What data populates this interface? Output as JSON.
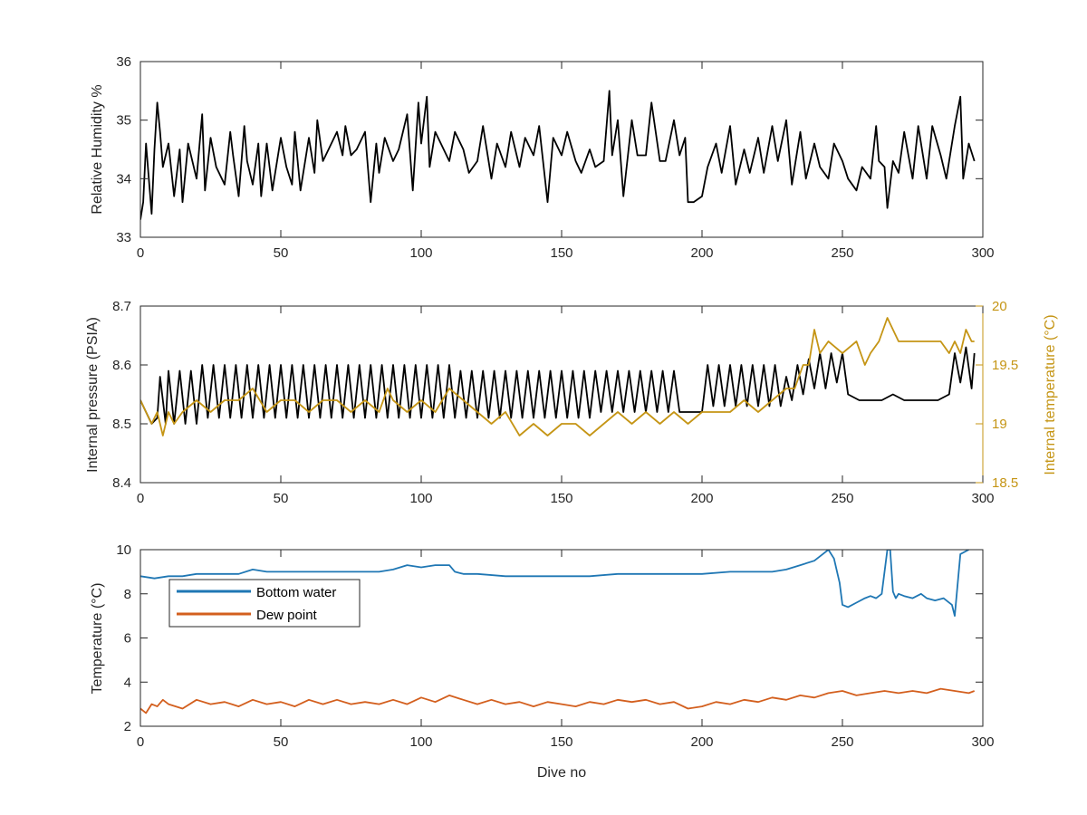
{
  "colors": {
    "axis": "#262626",
    "humidity": "#000000",
    "pressure": "#000000",
    "internal_temp": "#c59515",
    "bottom_water": "#1f77b4",
    "dew_point": "#d35f1e"
  },
  "chart_data": [
    {
      "type": "line",
      "xlabel": "",
      "ylabel": "Relative Humidity %",
      "xlim": [
        0,
        300
      ],
      "ylim": [
        33,
        36
      ],
      "x_ticks": [
        "0",
        "50",
        "100",
        "150",
        "200",
        "250",
        "300"
      ],
      "y_ticks": [
        "33",
        "34",
        "35",
        "36"
      ],
      "grid": false,
      "series": [
        {
          "color": "#000000",
          "x": [
            0,
            1,
            2,
            3,
            4,
            5,
            6,
            7,
            8,
            10,
            12,
            14,
            15,
            17,
            20,
            22,
            23,
            25,
            27,
            30,
            32,
            33,
            35,
            37,
            38,
            40,
            42,
            43,
            45,
            47,
            50,
            52,
            54,
            55,
            57,
            60,
            62,
            63,
            65,
            67,
            70,
            72,
            73,
            75,
            77,
            80,
            82,
            84,
            85,
            87,
            90,
            92,
            95,
            97,
            99,
            100,
            102,
            103,
            105,
            107,
            110,
            112,
            115,
            117,
            120,
            122,
            125,
            127,
            130,
            132,
            135,
            137,
            140,
            142,
            145,
            147,
            150,
            152,
            155,
            157,
            160,
            162,
            165,
            167,
            168,
            170,
            172,
            175,
            177,
            180,
            182,
            185,
            187,
            190,
            192,
            194,
            195,
            197,
            200,
            202,
            205,
            207,
            210,
            212,
            215,
            217,
            220,
            222,
            225,
            227,
            230,
            232,
            235,
            237,
            240,
            242,
            245,
            247,
            250,
            252,
            255,
            257,
            260,
            262,
            263,
            265,
            266,
            268,
            270,
            272,
            275,
            277,
            280,
            282,
            285,
            287,
            290,
            292,
            293,
            295,
            297
          ],
          "y": [
            33.3,
            33.6,
            34.6,
            34.0,
            33.4,
            34.5,
            35.3,
            34.8,
            34.2,
            34.6,
            33.7,
            34.5,
            33.6,
            34.6,
            34.0,
            35.1,
            33.8,
            34.7,
            34.2,
            33.9,
            34.8,
            34.4,
            33.7,
            34.9,
            34.3,
            33.9,
            34.6,
            33.7,
            34.6,
            33.8,
            34.7,
            34.2,
            33.9,
            34.8,
            33.8,
            34.7,
            34.1,
            35.0,
            34.3,
            34.5,
            34.8,
            34.4,
            34.9,
            34.4,
            34.5,
            34.8,
            33.6,
            34.6,
            34.1,
            34.7,
            34.3,
            34.5,
            35.1,
            33.8,
            35.3,
            34.6,
            35.4,
            34.2,
            34.8,
            34.6,
            34.3,
            34.8,
            34.5,
            34.1,
            34.3,
            34.9,
            34.0,
            34.6,
            34.2,
            34.8,
            34.2,
            34.7,
            34.4,
            34.9,
            33.6,
            34.7,
            34.4,
            34.8,
            34.3,
            34.1,
            34.5,
            34.2,
            34.3,
            35.5,
            34.4,
            35.0,
            33.7,
            35.0,
            34.4,
            34.4,
            35.3,
            34.3,
            34.3,
            35.0,
            34.4,
            34.7,
            33.6,
            33.6,
            33.7,
            34.2,
            34.6,
            34.1,
            34.9,
            33.9,
            34.5,
            34.1,
            34.7,
            34.1,
            34.9,
            34.3,
            35.0,
            33.9,
            34.8,
            34.0,
            34.6,
            34.2,
            34.0,
            34.6,
            34.3,
            34.0,
            33.8,
            34.2,
            34.0,
            34.9,
            34.3,
            34.2,
            33.5,
            34.3,
            34.1,
            34.8,
            34.0,
            34.9,
            34.0,
            34.9,
            34.4,
            34.0,
            34.9,
            35.4,
            34.0,
            34.6,
            34.3
          ]
        }
      ]
    },
    {
      "type": "line",
      "xlabel": "",
      "ylabel": "Internal pressure (PSIA)",
      "ylabel_right": "Internal temperature (°C)",
      "xlim": [
        0,
        300
      ],
      "ylim": [
        8.4,
        8.7
      ],
      "ylim_right": [
        18.5,
        20
      ],
      "x_ticks": [
        "0",
        "50",
        "100",
        "150",
        "200",
        "250",
        "300"
      ],
      "y_ticks": [
        "8.4",
        "8.5",
        "8.6",
        "8.7"
      ],
      "y_ticks_right": [
        "18.5",
        "19",
        "19.5",
        "20"
      ],
      "grid": false,
      "series": [
        {
          "color": "#000000",
          "axis": "left",
          "x": [
            0,
            2,
            4,
            6,
            7,
            9,
            10,
            12,
            14,
            16,
            18,
            20,
            22,
            24,
            26,
            28,
            30,
            32,
            34,
            36,
            38,
            40,
            42,
            44,
            46,
            48,
            50,
            52,
            54,
            56,
            58,
            60,
            62,
            64,
            66,
            68,
            70,
            72,
            74,
            76,
            78,
            80,
            82,
            84,
            86,
            88,
            90,
            92,
            94,
            96,
            98,
            100,
            102,
            104,
            106,
            108,
            110,
            112,
            114,
            116,
            118,
            120,
            122,
            124,
            126,
            128,
            130,
            132,
            134,
            136,
            138,
            140,
            142,
            144,
            146,
            148,
            150,
            152,
            154,
            156,
            158,
            160,
            162,
            164,
            166,
            168,
            170,
            172,
            174,
            176,
            178,
            180,
            182,
            184,
            186,
            188,
            190,
            192,
            194,
            196,
            198,
            200,
            202,
            204,
            206,
            208,
            210,
            212,
            214,
            216,
            218,
            220,
            222,
            224,
            226,
            228,
            230,
            232,
            234,
            236,
            238,
            240,
            242,
            244,
            246,
            248,
            250,
            252,
            256,
            260,
            264,
            268,
            272,
            276,
            280,
            284,
            288,
            290,
            292,
            294,
            296,
            297
          ],
          "y": [
            8.54,
            8.52,
            8.5,
            8.51,
            8.58,
            8.5,
            8.59,
            8.5,
            8.59,
            8.5,
            8.59,
            8.5,
            8.6,
            8.51,
            8.6,
            8.51,
            8.6,
            8.51,
            8.6,
            8.51,
            8.6,
            8.51,
            8.6,
            8.51,
            8.6,
            8.51,
            8.6,
            8.51,
            8.6,
            8.51,
            8.6,
            8.51,
            8.6,
            8.51,
            8.6,
            8.51,
            8.6,
            8.51,
            8.6,
            8.51,
            8.6,
            8.51,
            8.6,
            8.51,
            8.6,
            8.51,
            8.6,
            8.51,
            8.6,
            8.51,
            8.6,
            8.51,
            8.6,
            8.51,
            8.6,
            8.51,
            8.6,
            8.51,
            8.59,
            8.51,
            8.59,
            8.51,
            8.59,
            8.51,
            8.59,
            8.51,
            8.59,
            8.51,
            8.59,
            8.51,
            8.59,
            8.51,
            8.59,
            8.51,
            8.59,
            8.51,
            8.59,
            8.51,
            8.59,
            8.51,
            8.59,
            8.51,
            8.59,
            8.52,
            8.59,
            8.52,
            8.59,
            8.52,
            8.59,
            8.52,
            8.59,
            8.52,
            8.59,
            8.52,
            8.59,
            8.52,
            8.59,
            8.52,
            8.52,
            8.52,
            8.52,
            8.52,
            8.6,
            8.53,
            8.6,
            8.53,
            8.6,
            8.53,
            8.6,
            8.53,
            8.6,
            8.53,
            8.6,
            8.53,
            8.6,
            8.53,
            8.58,
            8.54,
            8.6,
            8.55,
            8.61,
            8.56,
            8.62,
            8.56,
            8.62,
            8.57,
            8.62,
            8.55,
            8.54,
            8.54,
            8.54,
            8.55,
            8.54,
            8.54,
            8.54,
            8.54,
            8.55,
            8.62,
            8.57,
            8.63,
            8.56,
            8.62
          ]
        },
        {
          "color": "#c59515",
          "axis": "right",
          "x": [
            0,
            2,
            4,
            6,
            8,
            10,
            12,
            15,
            20,
            25,
            30,
            35,
            40,
            45,
            50,
            55,
            60,
            65,
            70,
            75,
            80,
            85,
            88,
            90,
            95,
            100,
            105,
            110,
            115,
            120,
            125,
            130,
            135,
            140,
            145,
            150,
            155,
            160,
            165,
            170,
            175,
            180,
            185,
            190,
            195,
            200,
            205,
            210,
            215,
            220,
            225,
            230,
            233,
            236,
            238,
            240,
            242,
            245,
            250,
            255,
            258,
            260,
            263,
            266,
            268,
            270,
            275,
            280,
            285,
            288,
            290,
            292,
            294,
            296,
            297
          ],
          "y": [
            19.2,
            19.1,
            19.0,
            19.1,
            18.9,
            19.1,
            19.0,
            19.1,
            19.2,
            19.1,
            19.2,
            19.2,
            19.3,
            19.1,
            19.2,
            19.2,
            19.1,
            19.2,
            19.2,
            19.1,
            19.2,
            19.1,
            19.3,
            19.2,
            19.1,
            19.2,
            19.1,
            19.3,
            19.2,
            19.1,
            19.0,
            19.1,
            18.9,
            19.0,
            18.9,
            19.0,
            19.0,
            18.9,
            19.0,
            19.1,
            19.0,
            19.1,
            19.0,
            19.1,
            19.0,
            19.1,
            19.1,
            19.1,
            19.2,
            19.1,
            19.2,
            19.3,
            19.3,
            19.5,
            19.5,
            19.8,
            19.6,
            19.7,
            19.6,
            19.7,
            19.5,
            19.6,
            19.7,
            19.9,
            19.8,
            19.7,
            19.7,
            19.7,
            19.7,
            19.6,
            19.7,
            19.6,
            19.8,
            19.7,
            19.7
          ]
        }
      ]
    },
    {
      "type": "line",
      "xlabel": "Dive no",
      "ylabel": "Temperature (°C)",
      "xlim": [
        0,
        300
      ],
      "ylim": [
        2,
        10
      ],
      "x_ticks": [
        "0",
        "50",
        "100",
        "150",
        "200",
        "250",
        "300"
      ],
      "y_ticks": [
        "2",
        "4",
        "6",
        "8",
        "10"
      ],
      "grid": false,
      "legend": "top-left",
      "series": [
        {
          "name": "Bottom water",
          "color": "#1f77b4",
          "x": [
            0,
            5,
            10,
            15,
            20,
            25,
            30,
            35,
            40,
            45,
            50,
            55,
            60,
            65,
            70,
            75,
            80,
            85,
            90,
            95,
            100,
            105,
            110,
            112,
            115,
            120,
            130,
            140,
            150,
            160,
            170,
            180,
            190,
            200,
            210,
            215,
            220,
            225,
            230,
            235,
            240,
            243,
            245,
            247,
            249,
            250,
            252,
            255,
            258,
            260,
            262,
            264,
            266,
            267,
            268,
            269,
            270,
            272,
            275,
            278,
            280,
            283,
            286,
            289,
            290,
            292,
            295
          ],
          "y": [
            8.8,
            8.7,
            8.8,
            8.8,
            8.9,
            8.9,
            8.9,
            8.9,
            9.1,
            9.0,
            9.0,
            9.0,
            9.0,
            9.0,
            9.0,
            9.0,
            9.0,
            9.0,
            9.1,
            9.3,
            9.2,
            9.3,
            9.3,
            9.0,
            8.9,
            8.9,
            8.8,
            8.8,
            8.8,
            8.8,
            8.9,
            8.9,
            8.9,
            8.9,
            9.0,
            9.0,
            9.0,
            9.0,
            9.1,
            9.3,
            9.5,
            9.8,
            10.0,
            9.6,
            8.5,
            7.5,
            7.4,
            7.6,
            7.8,
            7.9,
            7.8,
            8.0,
            10.0,
            10.0,
            8.1,
            7.8,
            8.0,
            7.9,
            7.8,
            8.0,
            7.8,
            7.7,
            7.8,
            7.5,
            7.0,
            9.8,
            10.0
          ]
        },
        {
          "name": "Dew point",
          "color": "#d35f1e",
          "x": [
            0,
            2,
            4,
            6,
            8,
            10,
            15,
            20,
            25,
            30,
            35,
            40,
            45,
            50,
            55,
            60,
            65,
            70,
            75,
            80,
            85,
            90,
            95,
            100,
            105,
            110,
            115,
            120,
            125,
            130,
            135,
            140,
            145,
            150,
            155,
            160,
            165,
            170,
            175,
            180,
            185,
            190,
            195,
            200,
            205,
            210,
            215,
            220,
            225,
            230,
            235,
            240,
            245,
            250,
            255,
            260,
            265,
            270,
            275,
            280,
            285,
            290,
            295,
            297
          ],
          "y": [
            2.8,
            2.6,
            3.0,
            2.9,
            3.2,
            3.0,
            2.8,
            3.2,
            3.0,
            3.1,
            2.9,
            3.2,
            3.0,
            3.1,
            2.9,
            3.2,
            3.0,
            3.2,
            3.0,
            3.1,
            3.0,
            3.2,
            3.0,
            3.3,
            3.1,
            3.4,
            3.2,
            3.0,
            3.2,
            3.0,
            3.1,
            2.9,
            3.1,
            3.0,
            2.9,
            3.1,
            3.0,
            3.2,
            3.1,
            3.2,
            3.0,
            3.1,
            2.8,
            2.9,
            3.1,
            3.0,
            3.2,
            3.1,
            3.3,
            3.2,
            3.4,
            3.3,
            3.5,
            3.6,
            3.4,
            3.5,
            3.6,
            3.5,
            3.6,
            3.5,
            3.7,
            3.6,
            3.5,
            3.6
          ]
        }
      ]
    }
  ]
}
